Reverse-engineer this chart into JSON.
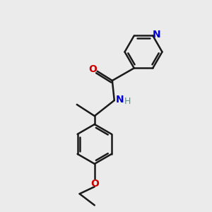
{
  "background_color": "#ebebeb",
  "bond_color": "#1a1a1a",
  "oxygen_color": "#cc0000",
  "nitrogen_color": "#0000cc",
  "amide_h_color": "#4a9090",
  "figsize": [
    3.0,
    3.0
  ],
  "dpi": 100,
  "xlim": [
    0,
    10
  ],
  "ylim": [
    0,
    10
  ]
}
